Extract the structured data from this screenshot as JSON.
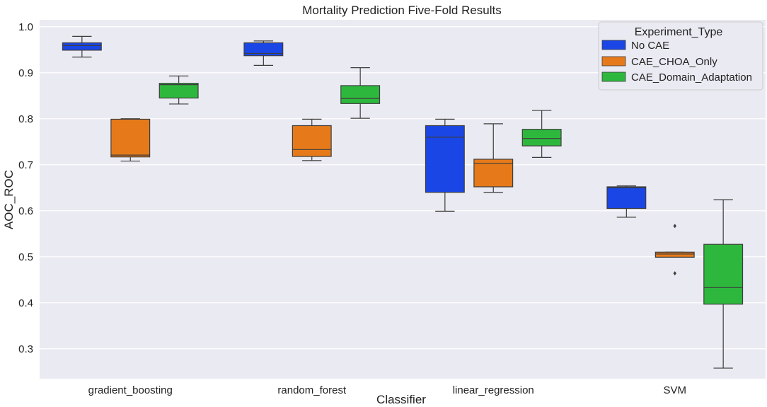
{
  "chart_data": {
    "type": "box",
    "title": "Mortality Prediction Five-Fold Results",
    "xlabel": "Classifier",
    "ylabel": "AOC_ROC",
    "ylim": [
      0.235,
      1.015
    ],
    "yticks": [
      0.3,
      0.4,
      0.5,
      0.6,
      0.7,
      0.8,
      0.9,
      1.0
    ],
    "ytick_labels": [
      "0.3",
      "0.4",
      "0.5",
      "0.6",
      "0.7",
      "0.8",
      "0.9",
      "1.0"
    ],
    "grid": true,
    "categories": [
      "gradient_boosting",
      "random_forest",
      "linear_regression",
      "SVM"
    ],
    "legend": {
      "title": "Experiment_Type",
      "placement": "top-right",
      "entries": [
        "No CAE",
        "CAE_CHOA_Only",
        "CAE_Domain_Adaptation"
      ]
    },
    "colors": {
      "background": "#eaeaf2",
      "grid": "#ffffff",
      "whisker": "#3d3d3d",
      "No CAE": "#1a46e6",
      "CAE_CHOA_Only": "#e67a1a",
      "CAE_Domain_Adaptation": "#2db83d"
    },
    "series": [
      {
        "name": "No CAE",
        "boxes": [
          {
            "q1": 0.949,
            "median": 0.959,
            "q3": 0.965,
            "whislo": 0.934,
            "whishi": 0.979,
            "fliers": []
          },
          {
            "q1": 0.937,
            "median": 0.942,
            "q3": 0.965,
            "whislo": 0.916,
            "whishi": 0.969,
            "fliers": []
          },
          {
            "q1": 0.64,
            "median": 0.76,
            "q3": 0.785,
            "whislo": 0.599,
            "whishi": 0.799,
            "fliers": []
          },
          {
            "q1": 0.605,
            "median": 0.65,
            "q3": 0.652,
            "whislo": 0.586,
            "whishi": 0.654,
            "fliers": []
          }
        ]
      },
      {
        "name": "CAE_CHOA_Only",
        "boxes": [
          {
            "q1": 0.717,
            "median": 0.721,
            "q3": 0.799,
            "whislo": 0.708,
            "whishi": 0.8,
            "fliers": []
          },
          {
            "q1": 0.718,
            "median": 0.733,
            "q3": 0.785,
            "whislo": 0.709,
            "whishi": 0.799,
            "fliers": []
          },
          {
            "q1": 0.652,
            "median": 0.703,
            "q3": 0.712,
            "whislo": 0.64,
            "whishi": 0.789,
            "fliers": []
          },
          {
            "q1": 0.499,
            "median": 0.506,
            "q3": 0.51,
            "whislo": 0.499,
            "whishi": 0.51,
            "fliers": [
              0.567,
              0.464
            ]
          }
        ]
      },
      {
        "name": "CAE_Domain_Adaptation",
        "boxes": [
          {
            "q1": 0.845,
            "median": 0.874,
            "q3": 0.877,
            "whislo": 0.832,
            "whishi": 0.893,
            "fliers": []
          },
          {
            "q1": 0.833,
            "median": 0.844,
            "q3": 0.872,
            "whislo": 0.801,
            "whishi": 0.911,
            "fliers": []
          },
          {
            "q1": 0.741,
            "median": 0.757,
            "q3": 0.777,
            "whislo": 0.716,
            "whishi": 0.818,
            "fliers": []
          },
          {
            "q1": 0.397,
            "median": 0.433,
            "q3": 0.527,
            "whislo": 0.258,
            "whishi": 0.624,
            "fliers": []
          }
        ]
      }
    ]
  }
}
